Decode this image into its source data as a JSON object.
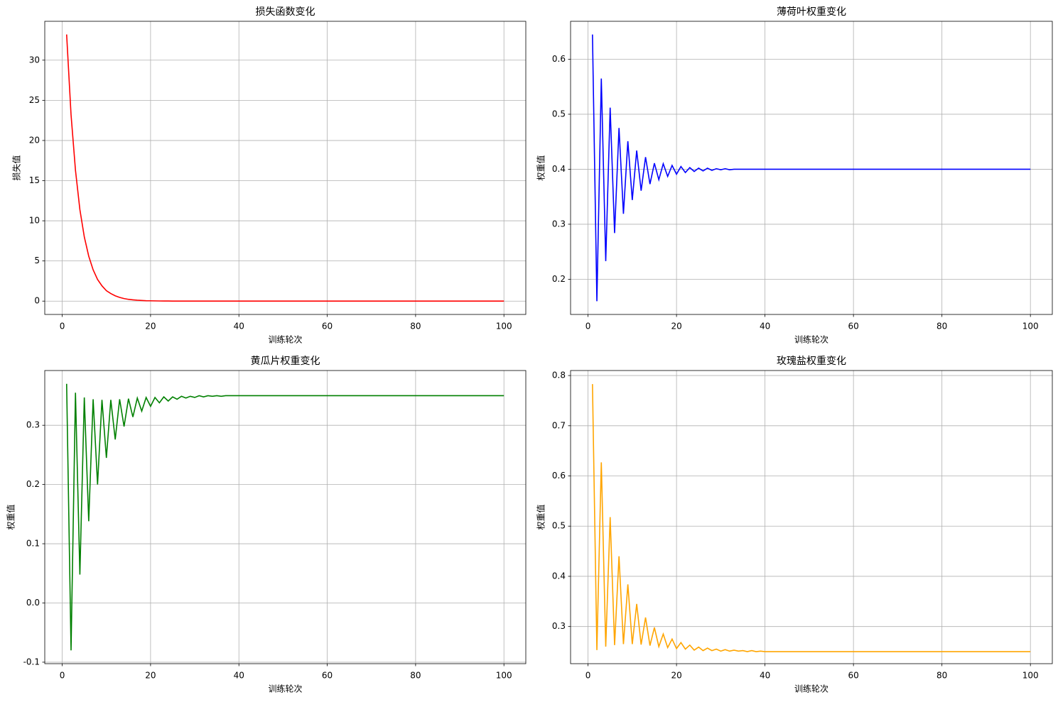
{
  "chart_data": [
    {
      "type": "line",
      "title": "损失函数变化",
      "xlabel": "训练轮次",
      "ylabel": "损失值",
      "color": "#ff0000",
      "grid": true,
      "x": [
        1,
        2,
        3,
        4,
        5,
        6,
        7,
        8,
        9,
        10,
        11,
        12,
        13,
        14,
        15,
        16,
        17,
        18,
        19,
        20,
        21,
        22,
        23,
        24,
        25,
        26,
        27,
        28,
        29,
        30,
        31,
        32,
        33,
        34,
        35,
        36,
        37,
        38,
        39,
        40,
        41,
        42,
        43,
        44,
        45,
        46,
        47,
        48,
        49,
        50,
        51,
        52,
        53,
        54,
        55,
        56,
        57,
        58,
        59,
        60,
        61,
        62,
        63,
        64,
        65,
        66,
        67,
        68,
        69,
        70,
        71,
        72,
        73,
        74,
        75,
        76,
        77,
        78,
        79,
        80,
        81,
        82,
        83,
        84,
        85,
        86,
        87,
        88,
        89,
        90,
        91,
        92,
        93,
        94,
        95,
        96,
        97,
        98,
        99,
        100
      ],
      "values": [
        33.2,
        23.2,
        16.3,
        11.4,
        8.0,
        5.6,
        3.9,
        2.7,
        1.9,
        1.3,
        0.94,
        0.66,
        0.46,
        0.32,
        0.22,
        0.16,
        0.11,
        0.08,
        0.05,
        0.04,
        0.03,
        0.02,
        0.01,
        0.01,
        0,
        0,
        0,
        0,
        0,
        0,
        0,
        0,
        0,
        0,
        0,
        0,
        0,
        0,
        0,
        0,
        0,
        0,
        0,
        0,
        0,
        0,
        0,
        0,
        0,
        0,
        0,
        0,
        0,
        0,
        0,
        0,
        0,
        0,
        0,
        0,
        0,
        0,
        0,
        0,
        0,
        0,
        0,
        0,
        0,
        0,
        0,
        0,
        0,
        0,
        0,
        0,
        0,
        0,
        0,
        0,
        0,
        0,
        0,
        0,
        0,
        0,
        0,
        0,
        0,
        0,
        0,
        0,
        0,
        0,
        0,
        0,
        0,
        0,
        0,
        0
      ],
      "xlim": [
        -3.95,
        104.95
      ],
      "xticks": [
        0,
        20,
        40,
        60,
        80,
        100
      ],
      "ylim": [
        -1.66,
        34.84
      ],
      "yticks": [
        0,
        5,
        10,
        15,
        20,
        25,
        30
      ]
    },
    {
      "type": "line",
      "title": "薄荷叶权重变化",
      "xlabel": "训练轮次",
      "ylabel": "权重值",
      "color": "#0000ff",
      "grid": true,
      "x": [
        1,
        2,
        3,
        4,
        5,
        6,
        7,
        8,
        9,
        10,
        11,
        12,
        13,
        14,
        15,
        16,
        17,
        18,
        19,
        20,
        21,
        22,
        23,
        24,
        25,
        26,
        27,
        28,
        29,
        30,
        31,
        32,
        33,
        34,
        35,
        36,
        37,
        38,
        39,
        40,
        41,
        42,
        43,
        44,
        45,
        46,
        47,
        48,
        49,
        50,
        51,
        52,
        53,
        54,
        55,
        56,
        57,
        58,
        59,
        60,
        61,
        62,
        63,
        64,
        65,
        66,
        67,
        68,
        69,
        70,
        71,
        72,
        73,
        74,
        75,
        76,
        77,
        78,
        79,
        80,
        81,
        82,
        83,
        84,
        85,
        86,
        87,
        88,
        89,
        90,
        91,
        92,
        93,
        94,
        95,
        96,
        97,
        98,
        99,
        100
      ],
      "values": [
        0.645,
        0.16,
        0.565,
        0.233,
        0.512,
        0.284,
        0.475,
        0.319,
        0.451,
        0.344,
        0.434,
        0.361,
        0.422,
        0.373,
        0.411,
        0.381,
        0.41,
        0.387,
        0.407,
        0.391,
        0.405,
        0.394,
        0.403,
        0.396,
        0.402,
        0.397,
        0.402,
        0.398,
        0.401,
        0.399,
        0.401,
        0.399,
        0.4,
        0.4,
        0.4,
        0.4,
        0.4,
        0.4,
        0.4,
        0.4,
        0.4,
        0.4,
        0.4,
        0.4,
        0.4,
        0.4,
        0.4,
        0.4,
        0.4,
        0.4,
        0.4,
        0.4,
        0.4,
        0.4,
        0.4,
        0.4,
        0.4,
        0.4,
        0.4,
        0.4,
        0.4,
        0.4,
        0.4,
        0.4,
        0.4,
        0.4,
        0.4,
        0.4,
        0.4,
        0.4,
        0.4,
        0.4,
        0.4,
        0.4,
        0.4,
        0.4,
        0.4,
        0.4,
        0.4,
        0.4,
        0.4,
        0.4,
        0.4,
        0.4,
        0.4,
        0.4,
        0.4,
        0.4,
        0.4,
        0.4,
        0.4,
        0.4,
        0.4,
        0.4,
        0.4,
        0.4,
        0.4,
        0.4,
        0.4,
        0.4
      ],
      "xlim": [
        -3.95,
        104.95
      ],
      "xticks": [
        0,
        20,
        40,
        60,
        80,
        100
      ],
      "ylim": [
        0.136,
        0.669
      ],
      "yticks": [
        0.2,
        0.3,
        0.4,
        0.5,
        0.6
      ]
    },
    {
      "type": "line",
      "title": "黄瓜片权重变化",
      "xlabel": "训练轮次",
      "ylabel": "权重值",
      "color": "#008000",
      "grid": true,
      "x": [
        1,
        2,
        3,
        4,
        5,
        6,
        7,
        8,
        9,
        10,
        11,
        12,
        13,
        14,
        15,
        16,
        17,
        18,
        19,
        20,
        21,
        22,
        23,
        24,
        25,
        26,
        27,
        28,
        29,
        30,
        31,
        32,
        33,
        34,
        35,
        36,
        37,
        38,
        39,
        40,
        41,
        42,
        43,
        44,
        45,
        46,
        47,
        48,
        49,
        50,
        51,
        52,
        53,
        54,
        55,
        56,
        57,
        58,
        59,
        60,
        61,
        62,
        63,
        64,
        65,
        66,
        67,
        68,
        69,
        70,
        71,
        72,
        73,
        74,
        75,
        76,
        77,
        78,
        79,
        80,
        81,
        82,
        83,
        84,
        85,
        86,
        87,
        88,
        89,
        90,
        91,
        92,
        93,
        94,
        95,
        96,
        97,
        98,
        99,
        100
      ],
      "values": [
        0.37,
        -0.08,
        0.355,
        0.048,
        0.347,
        0.138,
        0.344,
        0.2,
        0.343,
        0.245,
        0.343,
        0.276,
        0.344,
        0.298,
        0.345,
        0.314,
        0.346,
        0.324,
        0.347,
        0.332,
        0.347,
        0.338,
        0.348,
        0.341,
        0.348,
        0.344,
        0.349,
        0.346,
        0.349,
        0.347,
        0.35,
        0.348,
        0.35,
        0.349,
        0.35,
        0.349,
        0.35,
        0.35,
        0.35,
        0.35,
        0.35,
        0.35,
        0.35,
        0.35,
        0.35,
        0.35,
        0.35,
        0.35,
        0.35,
        0.35,
        0.35,
        0.35,
        0.35,
        0.35,
        0.35,
        0.35,
        0.35,
        0.35,
        0.35,
        0.35,
        0.35,
        0.35,
        0.35,
        0.35,
        0.35,
        0.35,
        0.35,
        0.35,
        0.35,
        0.35,
        0.35,
        0.35,
        0.35,
        0.35,
        0.35,
        0.35,
        0.35,
        0.35,
        0.35,
        0.35,
        0.35,
        0.35,
        0.35,
        0.35,
        0.35,
        0.35,
        0.35,
        0.35,
        0.35,
        0.35,
        0.35,
        0.35,
        0.35,
        0.35,
        0.35,
        0.35,
        0.35,
        0.35,
        0.35,
        0.35
      ],
      "xlim": [
        -3.95,
        104.95
      ],
      "xticks": [
        0,
        20,
        40,
        60,
        80,
        100
      ],
      "ylim": [
        -0.1025,
        0.3925
      ],
      "yticks": [
        -0.1,
        {
          "value": 0,
          "label": "0.0"
        },
        0.1,
        0.2,
        0.3
      ]
    },
    {
      "type": "line",
      "title": "玫瑰盐权重变化",
      "xlabel": "训练轮次",
      "ylabel": "权重值",
      "color": "#ffa500",
      "grid": true,
      "x": [
        1,
        2,
        3,
        4,
        5,
        6,
        7,
        8,
        9,
        10,
        11,
        12,
        13,
        14,
        15,
        16,
        17,
        18,
        19,
        20,
        21,
        22,
        23,
        24,
        25,
        26,
        27,
        28,
        29,
        30,
        31,
        32,
        33,
        34,
        35,
        36,
        37,
        38,
        39,
        40,
        41,
        42,
        43,
        44,
        45,
        46,
        47,
        48,
        49,
        50,
        51,
        52,
        53,
        54,
        55,
        56,
        57,
        58,
        59,
        60,
        61,
        62,
        63,
        64,
        65,
        66,
        67,
        68,
        69,
        70,
        71,
        72,
        73,
        74,
        75,
        76,
        77,
        78,
        79,
        80,
        81,
        82,
        83,
        84,
        85,
        86,
        87,
        88,
        89,
        90,
        91,
        92,
        93,
        94,
        95,
        96,
        97,
        98,
        99,
        100
      ],
      "values": [
        0.783,
        0.253,
        0.627,
        0.26,
        0.518,
        0.263,
        0.44,
        0.265,
        0.384,
        0.265,
        0.345,
        0.264,
        0.318,
        0.262,
        0.298,
        0.26,
        0.285,
        0.258,
        0.275,
        0.256,
        0.268,
        0.255,
        0.263,
        0.253,
        0.259,
        0.252,
        0.257,
        0.252,
        0.255,
        0.251,
        0.254,
        0.251,
        0.253,
        0.251,
        0.252,
        0.25,
        0.252,
        0.25,
        0.251,
        0.25,
        0.25,
        0.25,
        0.25,
        0.25,
        0.25,
        0.25,
        0.25,
        0.25,
        0.25,
        0.25,
        0.25,
        0.25,
        0.25,
        0.25,
        0.25,
        0.25,
        0.25,
        0.25,
        0.25,
        0.25,
        0.25,
        0.25,
        0.25,
        0.25,
        0.25,
        0.25,
        0.25,
        0.25,
        0.25,
        0.25,
        0.25,
        0.25,
        0.25,
        0.25,
        0.25,
        0.25,
        0.25,
        0.25,
        0.25,
        0.25,
        0.25,
        0.25,
        0.25,
        0.25,
        0.25,
        0.25,
        0.25,
        0.25,
        0.25,
        0.25,
        0.25,
        0.25,
        0.25,
        0.25,
        0.25,
        0.25,
        0.25,
        0.25,
        0.25,
        0.25
      ],
      "xlim": [
        -3.95,
        104.95
      ],
      "xticks": [
        0,
        20,
        40,
        60,
        80,
        100
      ],
      "ylim": [
        0.226,
        0.81
      ],
      "yticks": [
        0.3,
        0.4,
        0.5,
        0.6,
        0.7,
        0.8
      ]
    }
  ]
}
